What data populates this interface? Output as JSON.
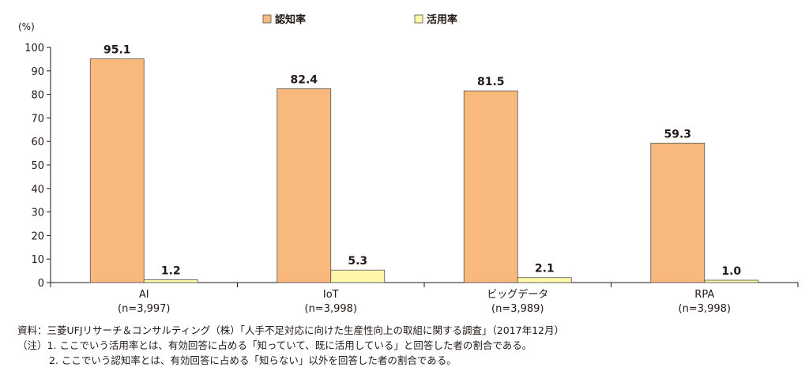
{
  "chart_data": {
    "type": "bar",
    "unit_label": "(%)",
    "categories": [
      "AI",
      "IoT",
      "ビッグデータ",
      "RPA"
    ],
    "category_counts": [
      "(n=3,997)",
      "(n=3,998)",
      "(n=3,989)",
      "(n=3,998)"
    ],
    "series": [
      {
        "name": "認知率",
        "values": [
          95.1,
          82.4,
          81.5,
          59.3
        ],
        "value_labels": [
          "95.1",
          "82.4",
          "81.5",
          "59.3"
        ],
        "color": "#F9B97C"
      },
      {
        "name": "活用率",
        "values": [
          1.2,
          5.3,
          2.1,
          1.0
        ],
        "value_labels": [
          "1.2",
          "5.3",
          "2.1",
          "1.0"
        ],
        "color": "#FFF8A8"
      }
    ],
    "ylim": [
      0,
      100
    ],
    "yticks": [
      "0",
      "10",
      "20",
      "30",
      "40",
      "50",
      "60",
      "70",
      "80",
      "90",
      "100"
    ],
    "legend_position": "top-center"
  },
  "notes": {
    "source": "資料：三菱UFJリサーチ＆コンサルティング（株）「人手不足対応に向けた生産性向上の取組に関する調査」（2017年12月）",
    "note1": "（注）1. ここでいう活用率とは、有効回答に占める「知っていて、既に活用している」と回答した者の割合である。",
    "note2": "2. ここでいう認知率とは、有効回答に占める「知らない」以外を回答した者の割合である。"
  }
}
